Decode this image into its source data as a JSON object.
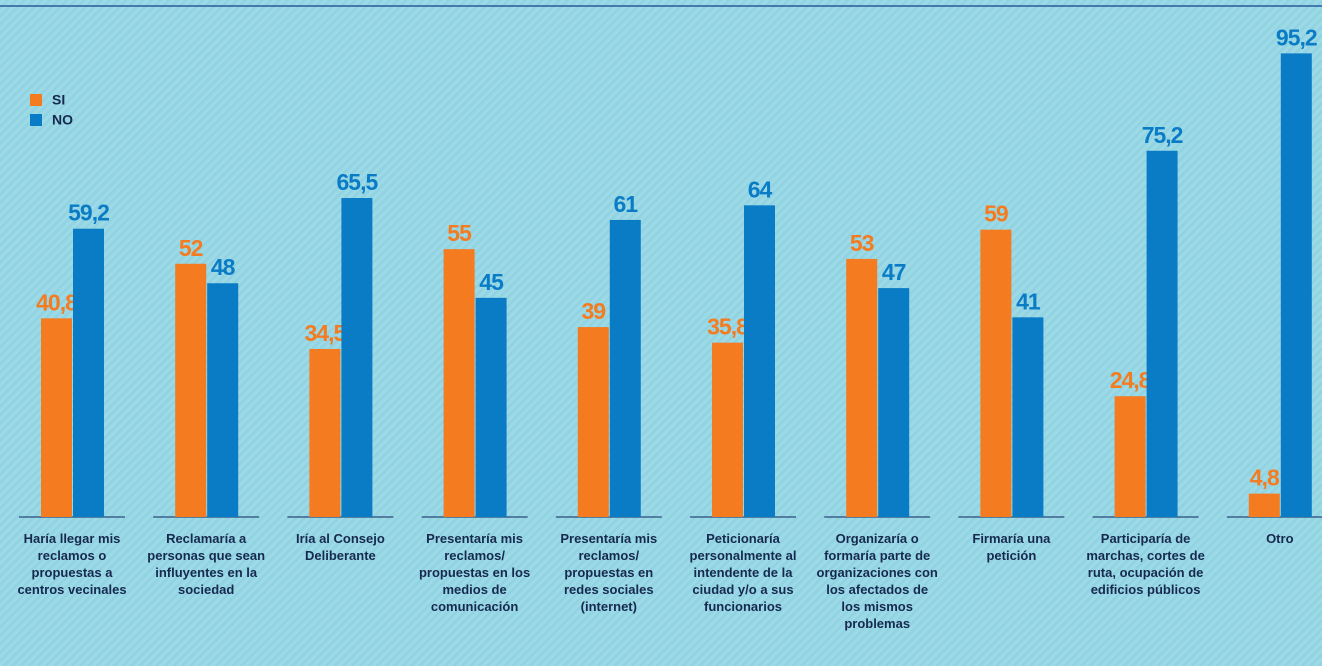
{
  "chart_data": {
    "type": "bar",
    "categories": [
      "Haría llegar mis reclamos o propuestas a centros vecinales",
      "Reclamaría a personas que sean influyentes en la sociedad",
      "Iría al Consejo Deliberante",
      "Presentaría mis reclamos/ propuestas en los medios de comunicación",
      "Presentaría mis reclamos/ propuestas en redes sociales (internet)",
      "Peticionaría personalmente al intendente de la ciudad y/o a sus funcionarios",
      "Organizaría o formaría parte de organizaciones con los afectados de los mismos problemas",
      "Firmaría una petición",
      "Participaría de marchas, cortes de ruta, ocupación de edificios públicos",
      "Otro"
    ],
    "series": [
      {
        "name": "SI",
        "color": "#f47b20",
        "values": [
          40.8,
          52,
          34.5,
          55,
          39,
          35.8,
          53,
          59,
          24.8,
          4.8
        ],
        "value_labels": [
          "40,8",
          "52",
          "34,5",
          "55",
          "39",
          "35,8",
          "53",
          "59",
          "24,8",
          "4,8"
        ]
      },
      {
        "name": "NO",
        "color": "#0a7cc6",
        "values": [
          59.2,
          48,
          65.5,
          45,
          61,
          64,
          47,
          41,
          75.2,
          95.2
        ],
        "value_labels": [
          "59,2",
          "48",
          "65,5",
          "45",
          "61",
          "64",
          "47",
          "41",
          "75,2",
          "95,2"
        ]
      }
    ],
    "ylim": [
      0,
      100
    ],
    "legend": "upper-left"
  }
}
